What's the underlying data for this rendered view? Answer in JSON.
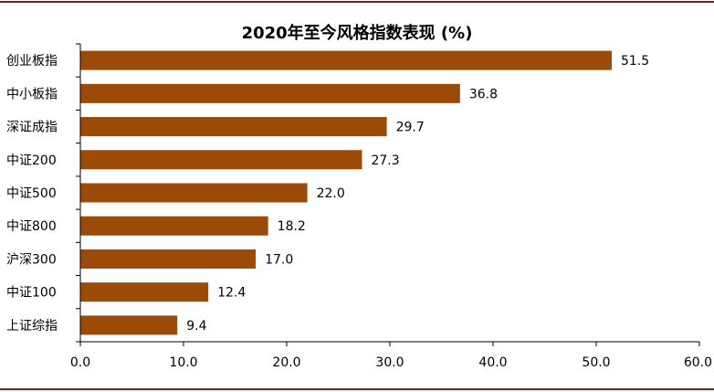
{
  "chart_data": {
    "type": "bar",
    "orientation": "horizontal",
    "title": "2020年至今风格指数表现 (%)",
    "categories": [
      "创业板指",
      "中小板指",
      "深证成指",
      "中证200",
      "中证500",
      "中证800",
      "沪深300",
      "中证100",
      "上证综指"
    ],
    "values": [
      51.5,
      36.8,
      29.7,
      27.3,
      22.0,
      18.2,
      17.0,
      12.4,
      9.4
    ],
    "value_labels": [
      "51.5",
      "36.8",
      "29.7",
      "27.3",
      "22.0",
      "18.2",
      "17.0",
      "12.4",
      "9.4"
    ],
    "xlim": [
      0,
      60
    ],
    "xticks": [
      0,
      10,
      20,
      30,
      40,
      50,
      60
    ],
    "xtick_labels": [
      "0.0",
      "10.0",
      "20.0",
      "30.0",
      "40.0",
      "50.0",
      "60.0"
    ],
    "grid": false,
    "bar_color": "#9c4a08",
    "rule_color": "#7a1f24"
  }
}
